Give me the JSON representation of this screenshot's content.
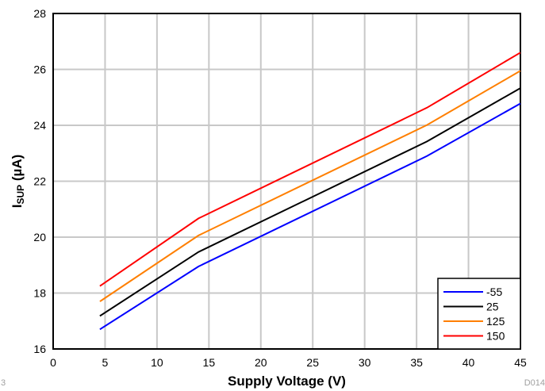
{
  "corner_left": "3",
  "corner_right": "D014",
  "chart_data": {
    "type": "line",
    "xlabel": "Supply Voltage (V)",
    "ylabel_main": "I",
    "ylabel_sub": "SUP",
    "ylabel_unit": " (µA)",
    "xlim": [
      0,
      45
    ],
    "ylim": [
      16,
      28
    ],
    "x_ticks": [
      0,
      5,
      10,
      15,
      20,
      25,
      30,
      35,
      40,
      45
    ],
    "y_ticks": [
      16,
      18,
      20,
      22,
      24,
      26,
      28
    ],
    "grid": true,
    "legend_position": "bottom-right",
    "series": [
      {
        "name": "-55",
        "color": "#0000ff",
        "x": [
          4.5,
          14,
          36,
          45
        ],
        "y": [
          16.7,
          18.95,
          22.9,
          24.78
        ]
      },
      {
        "name": "25",
        "color": "#000000",
        "x": [
          4.5,
          14,
          36,
          45
        ],
        "y": [
          17.18,
          19.47,
          23.42,
          25.33
        ]
      },
      {
        "name": "125",
        "color": "#ff7f00",
        "x": [
          4.5,
          14,
          36,
          45
        ],
        "y": [
          17.7,
          20.06,
          24.01,
          25.95
        ]
      },
      {
        "name": "150",
        "color": "#ff0000",
        "x": [
          4.5,
          14,
          36,
          45
        ],
        "y": [
          18.25,
          20.67,
          24.63,
          26.6
        ]
      }
    ]
  }
}
